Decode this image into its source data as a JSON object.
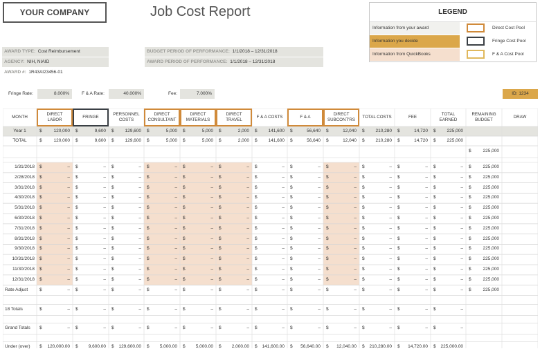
{
  "company_name": "YOUR COMPANY",
  "report_title": "Job Cost Report",
  "legend": {
    "title": "LEGEND",
    "items": [
      {
        "label": "Information from your award",
        "pool": "Direct Cost Pool",
        "fill": "#ffffff",
        "border": "#d08a3a"
      },
      {
        "label": "Information you decide",
        "pool": "Fringe Cost Pool",
        "fill": "#dba74a",
        "border": "#3a3f44"
      },
      {
        "label": "Information from QuickBooks",
        "pool": "F & A Cost Pool",
        "fill": "#f5dfce",
        "border": "#e0b85c"
      }
    ]
  },
  "award": [
    {
      "label": "AWARD TYPE:",
      "value": "Cost Reimbursement"
    },
    {
      "label": "AGENCY:",
      "value": "NIH, NIAID"
    },
    {
      "label": "AWARD #:",
      "value": "1R43AI23456-01"
    }
  ],
  "budget": [
    {
      "label": "BUDGET PERIOD OF PERFORMANCE:",
      "value": "1/1/2018 – 12/31/2018"
    },
    {
      "label": "AWARD PERIOD OF PERFORMANCE:",
      "value": "1/1/2018 – 12/31/2018"
    }
  ],
  "rates": {
    "fringe_label": "Fringe Rate:",
    "fringe_value": "8.000%",
    "fa_label": "F & A Rate:",
    "fa_value": "40.000%",
    "fee_label": "Fee:",
    "fee_value": "7.000%"
  },
  "id_label": "ID: 1234",
  "colors": {
    "orange_border": "#d08a3a",
    "dark_border": "#3a3f44",
    "peach_fill": "#f5dfce",
    "gray_fill": "#e4e4df",
    "gold": "#dba74a"
  },
  "columns": [
    {
      "label": "MONTH",
      "box": ""
    },
    {
      "label": "DIRECT\nLABOR",
      "box": "orange"
    },
    {
      "label": "FRINGE",
      "box": "dark"
    },
    {
      "label": "PERSONNEL\nCOSTS",
      "box": ""
    },
    {
      "label": "DIRECT\nCONSULTANT",
      "box": "orange"
    },
    {
      "label": "DIRECT\nMATERIALS",
      "box": "orange"
    },
    {
      "label": "DIRECT\nTRAVEL",
      "box": "orange"
    },
    {
      "label": "F & A COSTS",
      "box": ""
    },
    {
      "label": "F & A",
      "box": "orange"
    },
    {
      "label": "DIRECT\nSUBCONT'RS",
      "box": "orange"
    },
    {
      "label": "TOTAL COSTS",
      "box": ""
    },
    {
      "label": "FEE",
      "box": ""
    },
    {
      "label": "TOTAL\nEARNED",
      "box": ""
    },
    {
      "label": "REMAINING\nBUDGET",
      "box": ""
    },
    {
      "label": "DRAW",
      "box": ""
    }
  ],
  "year_row": {
    "label": "Year 1",
    "values": [
      "120,000",
      "9,600",
      "129,600",
      "5,000",
      "5,000",
      "2,000",
      "141,600",
      "56,640",
      "12,040",
      "210,280",
      "14,720",
      "225,000"
    ]
  },
  "total_row": {
    "label": "TOTAL",
    "values": [
      "120,000",
      "9,600",
      "129,600",
      "5,000",
      "5,000",
      "2,000",
      "141,600",
      "56,640",
      "12,040",
      "210,280",
      "14,720",
      "225,000"
    ]
  },
  "remaining_start": "225,000",
  "months": [
    "1/31/2018",
    "2/28/2018",
    "3/31/2018",
    "4/30/2018",
    "5/31/2018",
    "6/30/2018",
    "7/31/2018",
    "8/31/2018",
    "9/30/2018",
    "10/31/2018",
    "11/30/2018",
    "12/31/2018"
  ],
  "dollar": "$",
  "dash": "–",
  "remaining_value": "225,000",
  "rate_adjust_label": "Rate Adjust",
  "totals_18_label": "18 Totals",
  "grand_totals_label": "Grand Totals",
  "under_over": {
    "label": "Under (over)",
    "values": [
      "120,000.00",
      "9,600.00",
      "129,600.00",
      "5,000.00",
      "5,000.00",
      "2,000.00",
      "141,600.00",
      "56,640.00",
      "12,040.00",
      "210,280.00",
      "14,720.00",
      "225,000.00"
    ]
  }
}
